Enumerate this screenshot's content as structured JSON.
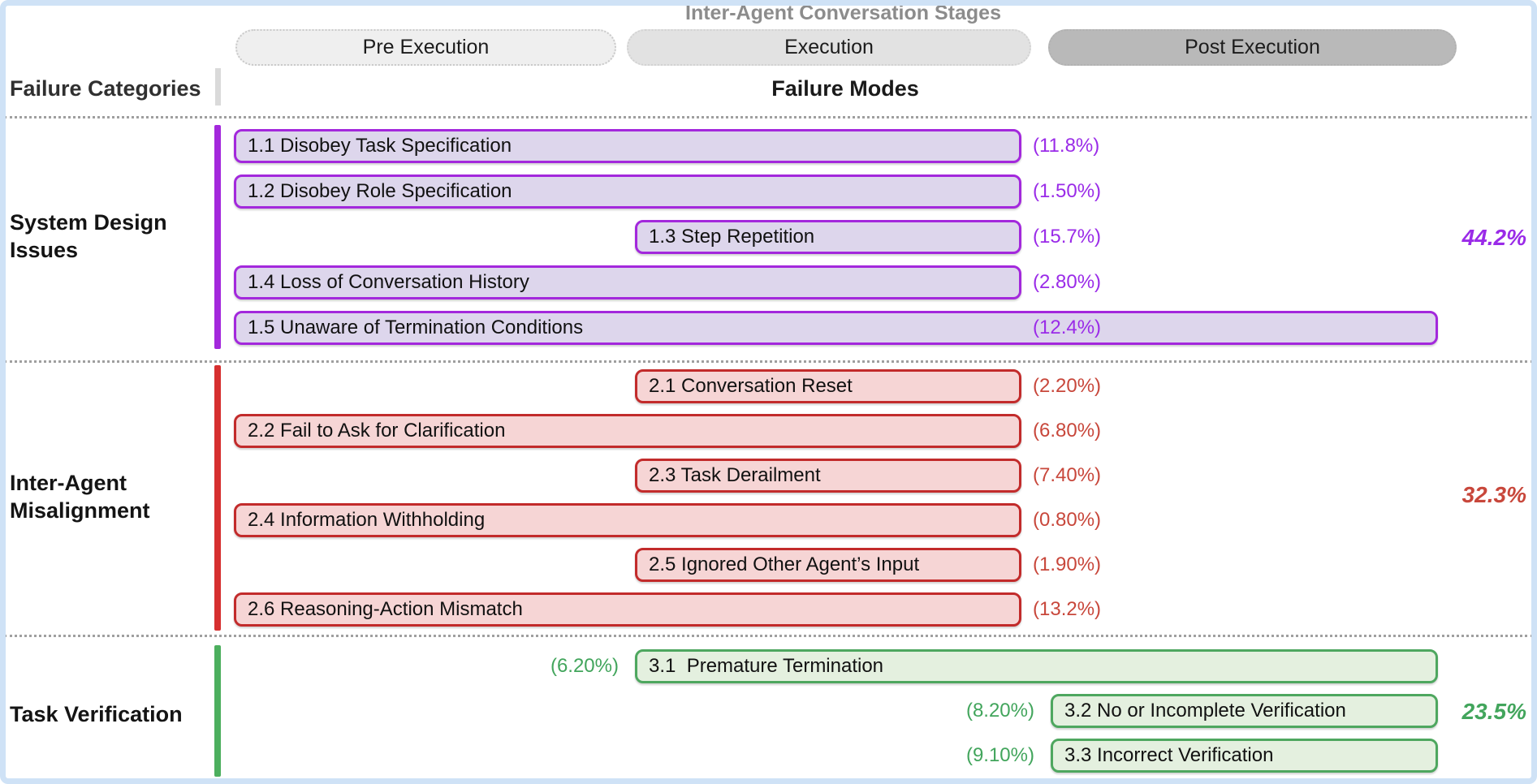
{
  "header": {
    "title": "Inter-Agent Conversation Stages",
    "failure_categories_label": "Failure Categories",
    "failure_modes_label": "Failure Modes",
    "stages": [
      {
        "id": "pre-execution",
        "label": "Pre Execution"
      },
      {
        "id": "execution",
        "label": "Execution"
      },
      {
        "id": "post-execution",
        "label": "Post Execution"
      }
    ]
  },
  "categories": [
    {
      "id": "system-design-issues",
      "label_lines": [
        "System Design",
        "Issues"
      ],
      "total": "44.2%",
      "colors": {
        "bar": "#A328DC",
        "border": "#A328DC",
        "fill": "#DDD6EC",
        "text": "#9A2BE8"
      },
      "modes": [
        {
          "label": "1.1 Disobey Task Specification",
          "pct": "(11.8%)",
          "span": "pre-exec",
          "pct_side": "right"
        },
        {
          "label": "1.2 Disobey Role Specification",
          "pct": "(1.50%)",
          "span": "pre-exec",
          "pct_side": "right"
        },
        {
          "label": "1.3 Step Repetition",
          "pct": "(15.7%)",
          "span": "exec",
          "pct_side": "right"
        },
        {
          "label": "1.4 Loss of Conversation History",
          "pct": "(2.80%)",
          "span": "pre-exec",
          "pct_side": "right"
        },
        {
          "label": "1.5 Unaware of Termination Conditions",
          "pct": "(12.4%)",
          "span": "pre-post",
          "pct_side": "right"
        }
      ]
    },
    {
      "id": "inter-agent-misalignment",
      "label_lines": [
        "Inter-Agent",
        "Misalignment"
      ],
      "total": "32.3%",
      "colors": {
        "bar": "#D62F2F",
        "border": "#C22B2B",
        "fill": "#F6D5D5",
        "text": "#C8473B"
      },
      "modes": [
        {
          "label": "2.1 Conversation Reset",
          "pct": "(2.20%)",
          "span": "exec",
          "pct_side": "right"
        },
        {
          "label": "2.2 Fail to Ask for Clarification",
          "pct": "(6.80%)",
          "span": "pre-exec",
          "pct_side": "right"
        },
        {
          "label": "2.3 Task Derailment",
          "pct": "(7.40%)",
          "span": "exec",
          "pct_side": "right"
        },
        {
          "label": "2.4 Information Withholding",
          "pct": "(0.80%)",
          "span": "pre-exec",
          "pct_side": "right"
        },
        {
          "label": "2.5 Ignored Other Agent’s Input",
          "pct": "(1.90%)",
          "span": "exec",
          "pct_side": "right"
        },
        {
          "label": "2.6 Reasoning-Action Mismatch",
          "pct": "(13.2%)",
          "span": "pre-exec",
          "pct_side": "right"
        }
      ]
    },
    {
      "id": "task-verification",
      "label_lines": [
        "Task Verification"
      ],
      "total": "23.5%",
      "colors": {
        "bar": "#4CAF5E",
        "border": "#4EA75F",
        "fill": "#E4F0DF",
        "text": "#42A55C"
      },
      "modes": [
        {
          "label": "3.1  Premature Termination",
          "pct": "(6.20%)",
          "span": "exec-post",
          "pct_side": "left"
        },
        {
          "label": "3.2 No or Incomplete Verification",
          "pct": "(8.20%)",
          "span": "post",
          "pct_side": "left"
        },
        {
          "label": "3.3 Incorrect Verification",
          "pct": "(9.10%)",
          "span": "post",
          "pct_side": "left"
        }
      ]
    }
  ]
}
